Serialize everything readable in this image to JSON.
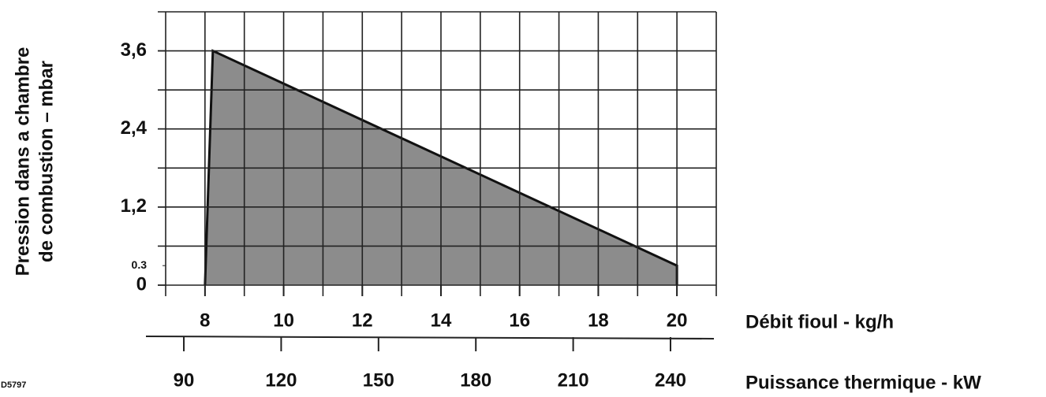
{
  "chart_data": {
    "type": "area",
    "ylabel": [
      "Pression dans a chambre",
      "de combustion – mbar"
    ],
    "xlabel": "Débit fioul - kg/h",
    "x2label": "Puissance thermique - kW",
    "code": "D5797",
    "series": [
      {
        "color": "#8c8c8c",
        "x": [
          8,
          8.2,
          20,
          20
        ],
        "values": [
          0,
          3.6,
          0.3,
          0
        ]
      }
    ],
    "xlim": [
      7,
      21
    ],
    "xticks": [
      8,
      10,
      12,
      14,
      16,
      18,
      20
    ],
    "xgrid": [
      7,
      8,
      9,
      10,
      11,
      12,
      13,
      14,
      15,
      16,
      17,
      18,
      19,
      20,
      21
    ],
    "ylim": [
      0,
      4.2
    ],
    "yticks": [
      0,
      {
        "value": 1.2,
        "label": "1,2"
      },
      {
        "value": 2.4,
        "label": "2,4"
      },
      {
        "value": 3.6,
        "label": "3,6"
      }
    ],
    "yticks_minor": [
      0.3
    ],
    "ygrid": [
      0,
      0.6,
      1.2,
      1.8,
      2.4,
      3.0,
      3.6,
      4.2
    ],
    "x2lim": [
      84.4,
      254.1
    ],
    "x2ticks": [
      90,
      120,
      150,
      180,
      210,
      240
    ],
    "grid": true
  }
}
